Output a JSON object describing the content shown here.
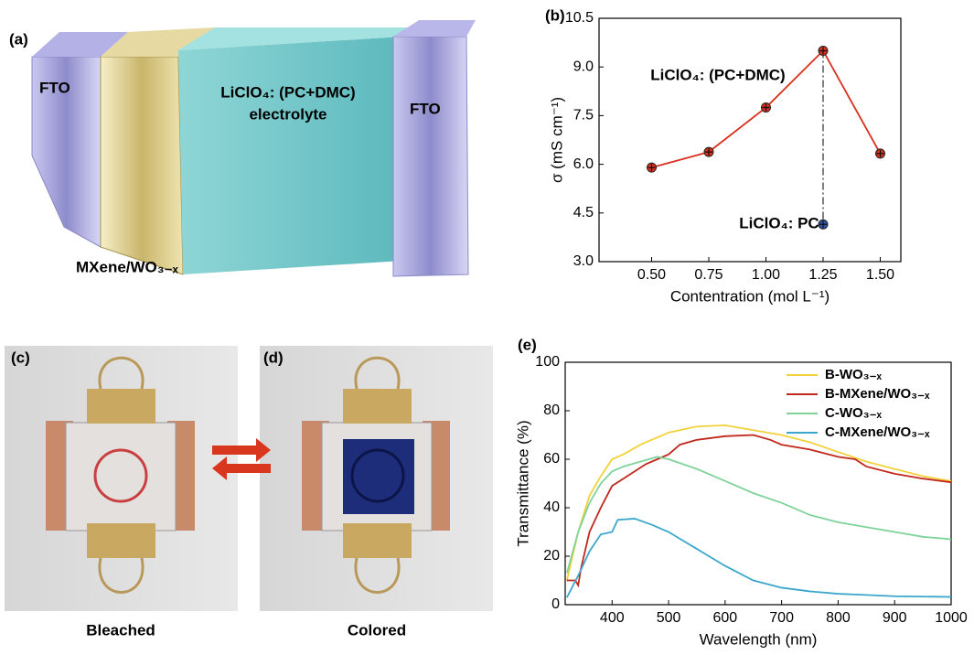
{
  "illustrations": {
    "device": {
      "label": "(a)",
      "left_electrode": "FTO",
      "right_electrode": "FTO",
      "electrolyte": [
        "LiClO₄: (PC+DMC)",
        "electrolyte"
      ],
      "film": "MXene/WO₃₋ₓ"
    },
    "photos": [
      {
        "label": "(c)",
        "caption": "Bleached"
      },
      {
        "label": "(d)",
        "caption": "Colored"
      }
    ]
  },
  "chart_data": [
    {
      "type": "line",
      "label": "(b)",
      "x_label": "Contentration (mol L⁻¹)",
      "y_label": "σ (mS cm⁻¹)",
      "series": [
        {
          "name": "LiClO₄: (PC+DMC)",
          "color": "#d9301e",
          "x": [
            0.5,
            0.75,
            1.0,
            1.25,
            1.5
          ],
          "values": [
            5.9,
            6.38,
            7.75,
            9.5,
            6.33
          ]
        },
        {
          "name": "LiClO₄: PC",
          "color": "#2f55a4",
          "x": [
            1.25
          ],
          "values": [
            4.15
          ]
        }
      ],
      "xlim": [
        0.27,
        1.59
      ],
      "xticks": [
        {
          "value": 0.5,
          "label": "0.50"
        },
        {
          "value": 0.75,
          "label": "0.75"
        },
        {
          "value": 1.0,
          "label": "1.00"
        },
        {
          "value": 1.25,
          "label": "1.25"
        },
        {
          "value": 1.5,
          "label": "1.50"
        }
      ],
      "ylim": [
        3.0,
        10.5
      ],
      "yticks": [
        {
          "value": 3.0,
          "label": "3.0"
        },
        4.5,
        {
          "value": 6.0,
          "label": "6.0"
        },
        7.5,
        {
          "value": 9.0,
          "label": "9.0"
        },
        10.5
      ]
    },
    {
      "type": "line",
      "label": "(e)",
      "x_label": "Wavelength (nm)",
      "y_label": "Transmittance (%)",
      "legend": "upper right",
      "series": [
        {
          "name": "B-WO₃₋ₓ",
          "color": "#f2d23a",
          "x": [
            320,
            340,
            360,
            380,
            400,
            420,
            450,
            480,
            500,
            550,
            600,
            650,
            700,
            750,
            800,
            850,
            900,
            950,
            1000
          ],
          "values": [
            10,
            30,
            45,
            53,
            60,
            62,
            66,
            69,
            71,
            73.5,
            74,
            72,
            70,
            67,
            63,
            59,
            56,
            53,
            51
          ]
        },
        {
          "name": "B-MXene/WO₃₋ₓ",
          "color": "#c0281c",
          "x": [
            320,
            335,
            340,
            345,
            360,
            380,
            400,
            420,
            440,
            460,
            480,
            500,
            520,
            550,
            600,
            650,
            680,
            700,
            750,
            800,
            830,
            850,
            900,
            950,
            1000
          ],
          "values": [
            10,
            10,
            8,
            15,
            30,
            40,
            49,
            52,
            55,
            58,
            60,
            62,
            66,
            68,
            69.5,
            70,
            68,
            66,
            64,
            61,
            60,
            57,
            54,
            52,
            50.5
          ]
        },
        {
          "name": "C-WO₃₋ₓ",
          "color": "#7fd39a",
          "x": [
            320,
            340,
            360,
            380,
            400,
            420,
            450,
            480,
            500,
            550,
            600,
            650,
            700,
            750,
            800,
            850,
            900,
            950,
            1000
          ],
          "values": [
            13,
            30,
            42,
            50,
            55,
            57,
            59,
            61,
            60,
            56,
            51,
            46,
            42,
            37,
            34,
            32,
            30,
            28,
            27
          ]
        },
        {
          "name": "C-MXene/WO₃₋ₓ",
          "color": "#3ba7cc",
          "x": [
            320,
            340,
            360,
            380,
            400,
            410,
            440,
            470,
            500,
            550,
            600,
            650,
            700,
            750,
            800,
            850,
            900,
            1000
          ],
          "values": [
            3,
            12,
            22,
            29,
            30,
            35,
            35.5,
            33,
            30,
            23,
            16,
            10,
            7,
            5.5,
            4.5,
            4,
            3.5,
            3.2
          ]
        }
      ],
      "xlim": [
        317,
        1000
      ],
      "xticks": [
        400,
        500,
        600,
        700,
        800,
        900,
        1000
      ],
      "ylim": [
        0,
        100
      ],
      "yticks": [
        0,
        20,
        40,
        60,
        80,
        100
      ]
    }
  ]
}
